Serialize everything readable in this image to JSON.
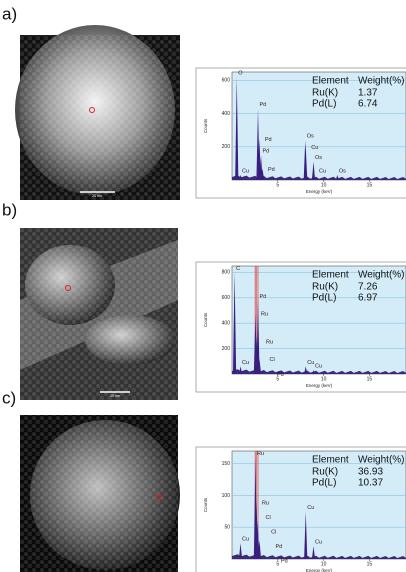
{
  "panels": [
    {
      "label": "a)",
      "scale_bar": "20 nm",
      "spectrum": {
        "type": "spectrum",
        "y_label": "Counts",
        "x_label": "Energy (keV)",
        "xlim": [
          0,
          19
        ],
        "xticks": [
          5,
          10,
          15
        ],
        "ylim": [
          0,
          650
        ],
        "yticks": [
          200,
          400,
          600
        ],
        "table": {
          "header": [
            "Element",
            "Weight(%)"
          ],
          "rows": [
            [
              "Ru(K)",
              1.37
            ],
            [
              "Pd(L)",
              6.74
            ]
          ]
        },
        "peaks": [
          {
            "label": "O",
            "energy": 0.52,
            "counts": 620
          },
          {
            "label": "Cu",
            "energy": 0.93,
            "counts": 30
          },
          {
            "label": "Pd",
            "energy": 2.84,
            "counts": 430
          },
          {
            "label": "Pd",
            "energy": 2.99,
            "counts": 250
          },
          {
            "label": "Pd",
            "energy": 3.17,
            "counts": 150
          },
          {
            "label": "Pd",
            "energy": 3.33,
            "counts": 70
          },
          {
            "label": "Os",
            "energy": 8.0,
            "counts": 240
          },
          {
            "label": "Cu",
            "energy": 8.05,
            "counts": 200
          },
          {
            "label": "Os",
            "energy": 8.9,
            "counts": 110
          },
          {
            "label": "Cu",
            "energy": 8.9,
            "counts": 60
          },
          {
            "label": "Os",
            "energy": 11.5,
            "counts": 30
          }
        ]
      }
    },
    {
      "label": "b)",
      "scale_bar": "20 nm",
      "spectrum": {
        "type": "spectrum",
        "y_label": "Counts",
        "x_label": "Energy (keV)",
        "xlim": [
          0,
          19
        ],
        "xticks": [
          5,
          10,
          15
        ],
        "ylim": [
          0,
          850
        ],
        "yticks": [
          200,
          400,
          600,
          800
        ],
        "table": {
          "header": [
            "Element",
            "Weight(%)"
          ],
          "rows": [
            [
              "Ru(K)",
              7.26
            ],
            [
              "Pd(L)",
              6.97
            ]
          ]
        },
        "peaks": [
          {
            "label": "C",
            "energy": 0.28,
            "counts": 800
          },
          {
            "label": "Cu",
            "energy": 0.93,
            "counts": 60
          },
          {
            "label": "Pd",
            "energy": 2.84,
            "counts": 580
          },
          {
            "label": "Ru",
            "energy": 2.56,
            "counts": 480
          },
          {
            "label": "Ru",
            "energy": 2.68,
            "counts": 300
          },
          {
            "label": "Cl",
            "energy": 2.62,
            "counts": 200
          },
          {
            "label": "Pd",
            "energy": 3.0,
            "counts": 120
          },
          {
            "label": "Cu",
            "energy": 8.05,
            "counts": 60
          },
          {
            "label": "Cu",
            "energy": 8.9,
            "counts": 30
          }
        ]
      }
    },
    {
      "label": "c)",
      "scale_bar": "",
      "spectrum": {
        "type": "spectrum",
        "y_label": "Counts",
        "x_label": "Energy (keV)",
        "xlim": [
          0,
          19
        ],
        "xticks": [
          5,
          10,
          15
        ],
        "ylim": [
          0,
          170
        ],
        "yticks": [
          50,
          100,
          150
        ],
        "table": {
          "header": [
            "Element",
            "Weight(%)"
          ],
          "rows": [
            [
              "Ru(K)",
              36.93
            ],
            [
              "Pd(L)",
              10.37
            ]
          ]
        },
        "peaks": [
          {
            "label": "Ru",
            "energy": 2.56,
            "counts": 160
          },
          {
            "label": "Ru",
            "energy": 2.68,
            "counts": 90
          },
          {
            "label": "Cl",
            "energy": 2.62,
            "counts": 75
          },
          {
            "label": "Cl",
            "energy": 2.8,
            "counts": 60
          },
          {
            "label": "Pd",
            "energy": 2.84,
            "counts": 45
          },
          {
            "label": "Pd",
            "energy": 3.0,
            "counts": 30
          },
          {
            "label": "Cu",
            "energy": 0.93,
            "counts": 25
          },
          {
            "label": "Cu",
            "energy": 8.05,
            "counts": 75
          },
          {
            "label": "Cu",
            "energy": 8.9,
            "counts": 20
          }
        ]
      }
    }
  ]
}
